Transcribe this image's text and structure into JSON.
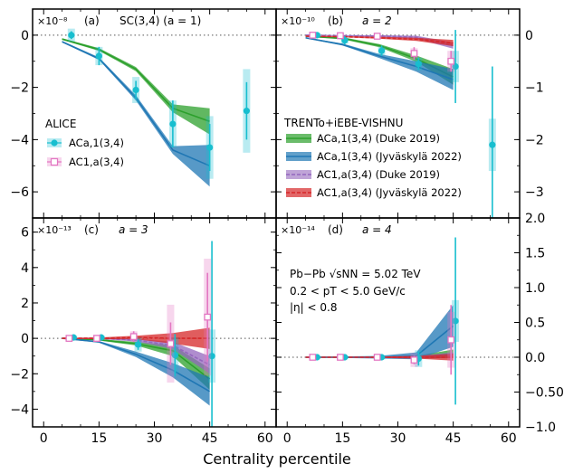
{
  "figure": {
    "xlabel": "Centrality percentile",
    "legend_alice_title": "ALICE",
    "legend_model_title": "TRENTo+iEBE-VISHNU",
    "system_label": "Pb−Pb √sNN = 5.02 TeV",
    "pt_label": "0.2 < pT < 5.0 GeV/c",
    "eta_label": "|η| < 0.8",
    "legend_entries": [
      {
        "key": "ac_a1_data",
        "text": "ACa,1(3,4)"
      },
      {
        "key": "ac_1a_data",
        "text": "AC1,a(3,4)"
      },
      {
        "key": "ac_a1_duke",
        "text": "ACa,1(3,4) (Duke 2019)"
      },
      {
        "key": "ac_a1_jyv",
        "text": "ACa,1(3,4) (Jyväskylä 2022)"
      },
      {
        "key": "ac_1a_duke",
        "text": "AC1,a(3,4) (Duke 2019)"
      },
      {
        "key": "ac_1a_jyv",
        "text": "AC1,a(3,4) (Jyväskylä 2022)"
      }
    ],
    "colors": {
      "ac_a1_data": "#17becf",
      "ac_1a_data": "#e377c2",
      "duke_ac_a1": "#2ca02c",
      "jyv_ac_a1": "#1f77b4",
      "duke_ac_1a": "#9467bd",
      "jyv_ac_1a": "#d62728"
    }
  },
  "chart_data": [
    {
      "panel": "a",
      "type": "line",
      "tag": "(a)",
      "scale": "×10⁻⁸",
      "title": "SC(3,4) (a = 1)",
      "xlim": [
        -3,
        63
      ],
      "ylim": [
        -7,
        1
      ],
      "yticks": [
        0,
        -2,
        -4,
        -6
      ],
      "ytick_labels": [
        "0",
        "−2",
        "−4",
        "−6"
      ],
      "yaxis": "left",
      "xticks": [
        0,
        15,
        30,
        45,
        60
      ],
      "x": [
        5,
        15,
        25,
        35,
        45
      ],
      "models": [
        {
          "key": "duke_ac_a1",
          "center": [
            -0.15,
            -0.55,
            -1.3,
            -2.8,
            -3.3
          ],
          "err": [
            0.03,
            0.05,
            0.08,
            0.15,
            0.5
          ]
        },
        {
          "key": "jyv_ac_a1",
          "center": [
            -0.25,
            -0.9,
            -2.4,
            -4.4,
            -5.0
          ],
          "err": [
            0.03,
            0.05,
            0.1,
            0.15,
            0.8
          ]
        }
      ],
      "points": [
        {
          "key": "ac_a1_data",
          "x": [
            7.5,
            15,
            25,
            35,
            45,
            55
          ],
          "y": [
            0.0,
            -0.8,
            -2.1,
            -3.4,
            -4.3,
            -2.9
          ],
          "err": [
            0.15,
            0.35,
            0.35,
            0.9,
            0.9,
            1.1
          ],
          "sys": [
            0.25,
            0.35,
            0.5,
            0.9,
            1.2,
            1.6
          ]
        }
      ]
    },
    {
      "panel": "b",
      "type": "line",
      "tag": "(b)",
      "scale": "×10⁻¹⁰",
      "title": "a = 2",
      "xlim": [
        -3,
        63
      ],
      "ylim": [
        -3.5,
        0.5
      ],
      "yticks": [
        0,
        -1,
        -2,
        -3
      ],
      "ytick_labels": [
        "0",
        "−1",
        "−2",
        "−3"
      ],
      "yaxis": "right",
      "xticks": [
        0,
        15,
        30,
        45,
        60
      ],
      "x": [
        5,
        15,
        25,
        35,
        45
      ],
      "models": [
        {
          "key": "duke_ac_a1",
          "center": [
            -0.02,
            -0.06,
            -0.2,
            -0.45,
            -0.8
          ],
          "err": [
            0.01,
            0.02,
            0.03,
            0.06,
            0.15
          ]
        },
        {
          "key": "jyv_ac_a1",
          "center": [
            -0.05,
            -0.18,
            -0.4,
            -0.6,
            -0.85
          ],
          "err": [
            0.01,
            0.02,
            0.04,
            0.1,
            0.2
          ]
        },
        {
          "key": "duke_ac_1a",
          "center": [
            0.0,
            -0.01,
            -0.02,
            -0.04,
            -0.2
          ],
          "err": [
            0.01,
            0.01,
            0.02,
            0.03,
            0.06
          ]
        },
        {
          "key": "jyv_ac_1a",
          "center": [
            -0.02,
            -0.03,
            -0.05,
            -0.08,
            -0.15
          ],
          "err": [
            0.01,
            0.01,
            0.02,
            0.03,
            0.06
          ]
        }
      ],
      "points": [
        {
          "key": "ac_a1_data",
          "x": [
            7.5,
            15,
            25,
            35,
            45,
            55
          ],
          "y": [
            0.0,
            -0.1,
            -0.3,
            -0.55,
            -0.6,
            -2.1
          ],
          "err": [
            0.05,
            0.08,
            0.1,
            0.12,
            0.7,
            1.5
          ],
          "sys": [
            0.04,
            0.06,
            0.08,
            0.12,
            0.3,
            0.5
          ]
        },
        {
          "key": "ac_1a_data",
          "x": [
            7.5,
            15,
            25,
            35,
            45
          ],
          "y": [
            0.0,
            -0.01,
            -0.02,
            -0.35,
            -0.5
          ],
          "err": [
            0.03,
            0.03,
            0.04,
            0.12,
            0.2
          ],
          "sys": [
            0.04,
            0.04,
            0.05,
            0.1,
            0.2
          ]
        }
      ]
    },
    {
      "panel": "c",
      "type": "line",
      "tag": "(c)",
      "scale": "×10⁻¹³",
      "title": "a = 3",
      "xlim": [
        -3,
        63
      ],
      "ylim": [
        -5,
        6.8
      ],
      "yticks": [
        6,
        4,
        2,
        0,
        -2,
        -4
      ],
      "ytick_labels": [
        "6",
        "4",
        "2",
        "0",
        "−2",
        "−4"
      ],
      "yaxis": "left",
      "xticks": [
        0,
        15,
        30,
        45,
        60
      ],
      "x": [
        5,
        15,
        25,
        35,
        45
      ],
      "models": [
        {
          "key": "duke_ac_a1",
          "center": [
            0.0,
            -0.08,
            -0.3,
            -0.7,
            -2.3
          ],
          "err": [
            0.02,
            0.04,
            0.1,
            0.3,
            0.6
          ]
        },
        {
          "key": "jyv_ac_a1",
          "center": [
            0.0,
            -0.2,
            -0.9,
            -1.8,
            -3.0
          ],
          "err": [
            0.02,
            0.05,
            0.15,
            0.4,
            0.8
          ]
        },
        {
          "key": "duke_ac_1a",
          "center": [
            0.0,
            0.0,
            -0.1,
            -0.4,
            -1.5
          ],
          "err": [
            0.02,
            0.03,
            0.08,
            0.2,
            0.5
          ]
        },
        {
          "key": "jyv_ac_1a",
          "center": [
            0.0,
            0.0,
            0.05,
            0.0,
            0.0
          ],
          "err": [
            0.03,
            0.05,
            0.1,
            0.3,
            0.6
          ]
        }
      ],
      "points": [
        {
          "key": "ac_a1_data",
          "x": [
            7.5,
            15,
            25,
            35,
            45
          ],
          "y": [
            0.05,
            0.05,
            -0.35,
            -0.95,
            -1.0
          ],
          "err": [
            0.1,
            0.15,
            0.3,
            1.2,
            6.5
          ],
          "sys": [
            0.1,
            0.1,
            0.4,
            1.0,
            1.5
          ]
        },
        {
          "key": "ac_1a_data",
          "x": [
            7.5,
            15,
            25,
            35,
            45
          ],
          "y": [
            0.0,
            0.0,
            0.1,
            -0.3,
            1.2
          ],
          "err": [
            0.1,
            0.15,
            0.3,
            1.2,
            2.5
          ],
          "sys": [
            0.15,
            0.2,
            0.3,
            2.2,
            3.3
          ]
        }
      ]
    },
    {
      "panel": "d",
      "type": "line",
      "tag": "(d)",
      "scale": "×10⁻¹⁴",
      "title": "a = 4",
      "xlim": [
        -3,
        63
      ],
      "ylim": [
        -1.0,
        2.0
      ],
      "yticks": [
        2.0,
        1.5,
        1.0,
        0.5,
        0.0,
        -0.5,
        -1.0
      ],
      "ytick_labels": [
        "2.0",
        "1.5",
        "1.0",
        "0.5",
        "0.0",
        "−0.50",
        "−1.0"
      ],
      "yaxis": "right",
      "xticks": [
        0,
        15,
        30,
        45,
        60
      ],
      "x": [
        5,
        15,
        25,
        35,
        45
      ],
      "models": [
        {
          "key": "duke_ac_a1",
          "center": [
            0.0,
            0.0,
            0.0,
            0.0,
            0.05
          ],
          "err": [
            0.005,
            0.005,
            0.01,
            0.02,
            0.06
          ]
        },
        {
          "key": "jyv_ac_a1",
          "center": [
            0.0,
            0.0,
            0.0,
            0.02,
            0.45
          ],
          "err": [
            0.005,
            0.01,
            0.02,
            0.05,
            0.3
          ]
        },
        {
          "key": "duke_ac_1a",
          "center": [
            0.0,
            0.0,
            0.0,
            0.0,
            0.03
          ],
          "err": [
            0.005,
            0.005,
            0.01,
            0.02,
            0.04
          ]
        },
        {
          "key": "jyv_ac_1a",
          "center": [
            0.0,
            0.0,
            0.0,
            0.0,
            0.0
          ],
          "err": [
            0.005,
            0.005,
            0.01,
            0.02,
            0.05
          ]
        }
      ],
      "points": [
        {
          "key": "ac_a1_data",
          "x": [
            7.5,
            15,
            25,
            35,
            45
          ],
          "y": [
            0.0,
            0.0,
            0.0,
            -0.02,
            0.52
          ],
          "err": [
            0.02,
            0.02,
            0.03,
            0.1,
            1.2
          ],
          "sys": [
            0.02,
            0.02,
            0.03,
            0.12,
            0.3
          ]
        },
        {
          "key": "ac_1a_data",
          "x": [
            7.5,
            15,
            25,
            35,
            45
          ],
          "y": [
            0.0,
            0.0,
            0.0,
            -0.04,
            0.25
          ],
          "err": [
            0.02,
            0.02,
            0.03,
            0.06,
            0.5
          ],
          "sys": [
            0.02,
            0.02,
            0.03,
            0.1,
            0.4
          ]
        }
      ]
    }
  ]
}
